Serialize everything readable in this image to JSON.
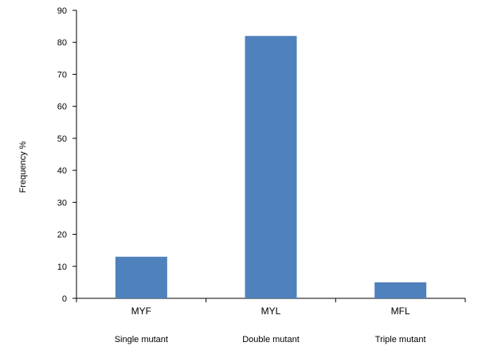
{
  "chart_data": {
    "type": "bar",
    "categories": [
      "MYF",
      "MYL",
      "MFL"
    ],
    "groups": [
      "Single mutant",
      "Double mutant",
      "Triple mutant"
    ],
    "values": [
      13,
      82,
      5
    ],
    "ylabel": "Frequency %",
    "xlabel": "",
    "ylim": [
      0,
      90
    ],
    "yticks": [
      0,
      10,
      20,
      30,
      40,
      50,
      60,
      70,
      80,
      90
    ],
    "grid": false,
    "legend": "none",
    "bar_color": "#4F81BD",
    "axis_color": "#000000"
  }
}
